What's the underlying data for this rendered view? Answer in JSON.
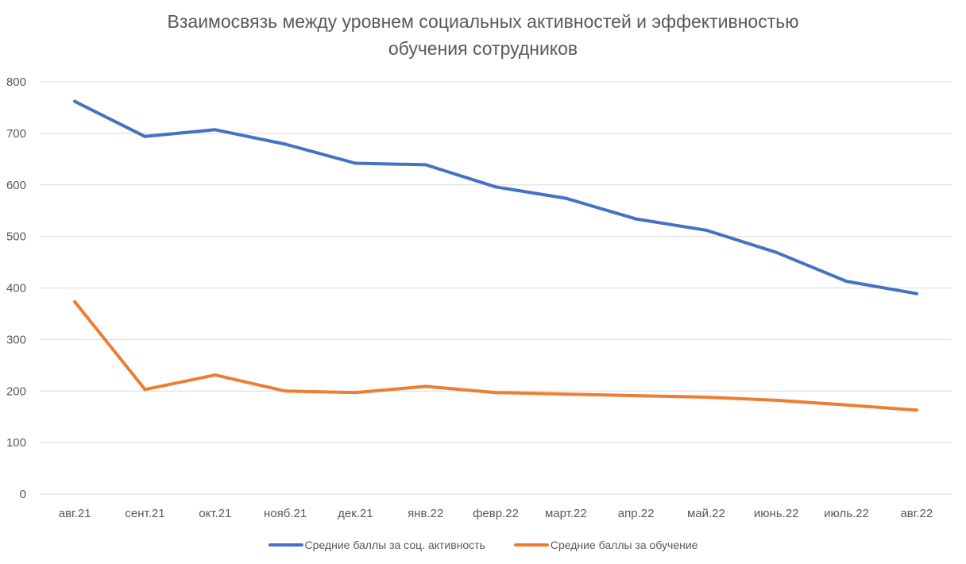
{
  "chart_data": {
    "type": "line",
    "title_lines": [
      "Взаимосвязь между уровнем социальных активностей и эффективностью",
      "обучения сотрудников"
    ],
    "categories": [
      "авг.21",
      "сент.21",
      "окт.21",
      "нояб.21",
      "дек.21",
      "янв.22",
      "февр.22",
      "март.22",
      "апр.22",
      "май.22",
      "июнь.22",
      "июль.22",
      "авг.22"
    ],
    "series": [
      {
        "name": "Средние баллы за соц. активность",
        "color": "#4472C4",
        "values": [
          762,
          694,
          707,
          679,
          642,
          639,
          596,
          574,
          534,
          512,
          469,
          413,
          389
        ]
      },
      {
        "name": "Средние баллы за обучение",
        "color": "#ED7D31",
        "values": [
          373,
          203,
          231,
          200,
          197,
          209,
          197,
          194,
          191,
          188,
          182,
          173,
          163
        ]
      }
    ],
    "ylim": [
      0,
      800
    ],
    "yticks": [
      0,
      100,
      200,
      300,
      400,
      500,
      600,
      700,
      800
    ],
    "grid": true,
    "legend_position": "bottom"
  }
}
